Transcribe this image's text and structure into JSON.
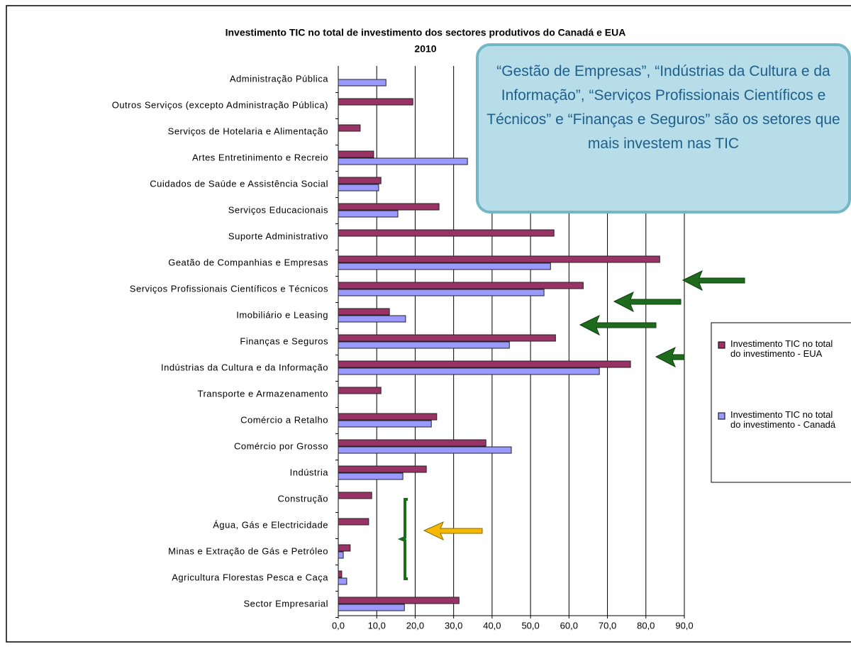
{
  "chart_data": {
    "type": "hbar",
    "title": "Investimento TIC no total de investimento dos sectores produtivos do Canadá e EUA",
    "subtitle": "2010",
    "annotation": "“Gestão de Empresas”, “Indústrias da Cultura e da Informação”, “Serviços Profissionais Científicos e Técnicos” e “Finanças e Seguros” são os setores que mais investem nas TIC",
    "categories": [
      "Administração Pública",
      "Outros Serviços (excepto Administração Pública)",
      "Serviços de Hotelaria e Alimentação",
      "Artes Entretinimento e Recreio",
      "Cuidados de Saúde e Assistência Social",
      "Serviços Educacionais",
      "Suporte Administrativo",
      "Geatão de Companhias e Empresas",
      "Serviços Profissionais Científicos e Técnicos",
      "Imobiliário e Leasing",
      "Finanças e Seguros",
      "Indústrias da Cultura e da Informação",
      "Transporte e Armazenamento",
      "Comércio a Retalho",
      "Comércio por Grosso",
      "Indústria",
      "Construção",
      "Água, Gás e Electricidade",
      "Minas e Extração de Gás e Petróleo",
      "Agricultura Florestas Pesca e Caça",
      "Sector Empresarial"
    ],
    "series": [
      {
        "name": "Investimento TIC no total do investimento - EUA",
        "color": "#993366",
        "values": [
          null,
          19.4,
          5.7,
          9.2,
          11.1,
          26.2,
          56.1,
          83.6,
          63.7,
          13.3,
          56.5,
          76.0,
          11.1,
          25.6,
          38.4,
          22.9,
          8.7,
          7.9,
          3.1,
          0.9,
          31.4
        ]
      },
      {
        "name": "Investimento TIC no total do investimento - Canadá",
        "color": "#9999ff",
        "values": [
          12.4,
          null,
          null,
          33.6,
          10.5,
          15.5,
          null,
          55.2,
          53.5,
          17.5,
          44.5,
          67.9,
          null,
          24.2,
          45.0,
          16.8,
          null,
          null,
          1.3,
          2.2,
          17.2
        ]
      }
    ],
    "xlim": [
      0,
      90
    ],
    "xticks": [
      {
        "value": 0,
        "label": "0,0"
      },
      {
        "value": 10,
        "label": "10,0"
      },
      {
        "value": 20,
        "label": "20,0"
      },
      {
        "value": 30,
        "label": "30,0"
      },
      {
        "value": 40,
        "label": "40,0"
      },
      {
        "value": 50,
        "label": "50,0"
      },
      {
        "value": 60,
        "label": "60,0"
      },
      {
        "value": 70,
        "label": "70,0"
      },
      {
        "value": 80,
        "label": "80,0"
      },
      {
        "value": 90,
        "label": "90,0"
      }
    ],
    "grid": true,
    "legend": "right"
  }
}
